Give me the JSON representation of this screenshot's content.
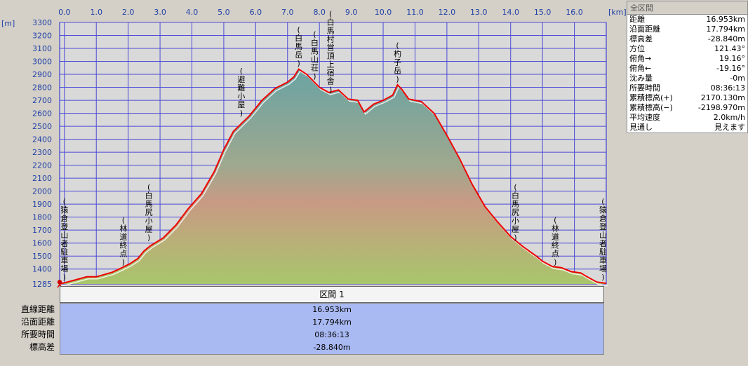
{
  "chart_data": {
    "type": "area",
    "x_unit": "[km]",
    "y_unit": "[m]",
    "xlim": [
      -0.15,
      17.0
    ],
    "ylim": [
      1285,
      3300
    ],
    "x_ticks": [
      "0.0",
      "1.0",
      "2.0",
      "3.0",
      "4.0",
      "5.0",
      "6.0",
      "7.0",
      "8.0",
      "9.0",
      "10.0",
      "11.0",
      "12.0",
      "13.0",
      "14.0",
      "15.0",
      "16.0"
    ],
    "y_ticks": [
      "3300",
      "3200",
      "3100",
      "3000",
      "2900",
      "2800",
      "2700",
      "2600",
      "2500",
      "2400",
      "2300",
      "2200",
      "2100",
      "2000",
      "1900",
      "1800",
      "1700",
      "1600",
      "1500",
      "1400",
      "1285"
    ],
    "profile": {
      "x": [
        -0.15,
        0.1,
        0.4,
        0.7,
        1.0,
        1.5,
        1.8,
        2.05,
        2.3,
        2.5,
        2.7,
        3.1,
        3.5,
        3.9,
        4.3,
        4.7,
        5.0,
        5.3,
        5.8,
        6.2,
        6.6,
        7.0,
        7.2,
        7.35,
        7.6,
        8.0,
        8.3,
        8.6,
        8.9,
        9.2,
        9.4,
        9.7,
        10.0,
        10.3,
        10.45,
        10.6,
        10.8,
        11.2,
        11.6,
        12.0,
        12.4,
        12.8,
        13.2,
        13.6,
        14.0,
        14.4,
        14.8,
        15.0,
        15.3,
        15.6,
        15.9,
        16.2,
        16.4,
        16.7,
        17.0
      ],
      "y": [
        1285,
        1300,
        1320,
        1340,
        1340,
        1375,
        1410,
        1440,
        1480,
        1540,
        1580,
        1640,
        1740,
        1870,
        1980,
        2150,
        2320,
        2460,
        2580,
        2700,
        2790,
        2840,
        2880,
        2940,
        2900,
        2800,
        2760,
        2780,
        2710,
        2700,
        2610,
        2670,
        2700,
        2740,
        2820,
        2780,
        2710,
        2690,
        2600,
        2430,
        2250,
        2050,
        1880,
        1760,
        1650,
        1570,
        1500,
        1460,
        1420,
        1410,
        1380,
        1370,
        1340,
        1300,
        1290
      ]
    },
    "annotations": [
      {
        "x": 0.0,
        "y": 1285,
        "text": "(猿倉登山者駐車場)"
      },
      {
        "x": 1.85,
        "y": 1400,
        "text": "(林道終点)"
      },
      {
        "x": 2.65,
        "y": 1590,
        "text": "(白馬尻小屋)"
      },
      {
        "x": 5.55,
        "y": 2550,
        "text": "(避難小屋)"
      },
      {
        "x": 7.35,
        "y": 2932,
        "text": "(白馬岳)"
      },
      {
        "x": 7.85,
        "y": 2832,
        "text": "(白馬山荘)"
      },
      {
        "x": 8.35,
        "y": 2730,
        "text": "(白馬村営頂上宿舎)"
      },
      {
        "x": 10.45,
        "y": 2812,
        "text": "(杓子岳)"
      },
      {
        "x": 14.15,
        "y": 1590,
        "text": "(白馬尻小屋)"
      },
      {
        "x": 15.4,
        "y": 1400,
        "text": "(林道終点)"
      },
      {
        "x": 16.9,
        "y": 1285,
        "text": "(猿倉登山者駐車場)"
      }
    ]
  },
  "summary": {
    "header": "全区間",
    "rows": [
      {
        "label": "距離",
        "value": "16.953km"
      },
      {
        "label": "沿面距離",
        "value": "17.794km"
      },
      {
        "label": "標高差",
        "value": "-28.840m"
      },
      {
        "label": "方位",
        "value": "121.43°"
      },
      {
        "label": "俯角→",
        "value": "19.16°"
      },
      {
        "label": "俯角←",
        "value": "-19.16°"
      },
      {
        "label": "沈み量",
        "value": "-0m"
      },
      {
        "label": "所要時間",
        "value": "08:36:13"
      },
      {
        "label": "累積標高(+)",
        "value": "2170.130m"
      },
      {
        "label": "累積標高(−)",
        "value": "-2198.970m"
      },
      {
        "label": "平均速度",
        "value": "2.0km/h"
      },
      {
        "label": "見通し",
        "value": "見えます"
      }
    ]
  },
  "section": {
    "title": "区間 1",
    "labels": [
      "直線距離",
      "沿面距離",
      "所要時間",
      "標高差"
    ],
    "values": [
      "16.953km",
      "17.794km",
      "08:36:13",
      "-28.840m"
    ]
  },
  "colors": {
    "plot_border": "#2222cc",
    "grid": "#4444dd",
    "profile_line": "#ee0000",
    "fill_top": "#6aa3a3",
    "fill_mid": "#c79e86",
    "fill_bottom": "#a7c36a",
    "background": "#d4d0c8"
  }
}
